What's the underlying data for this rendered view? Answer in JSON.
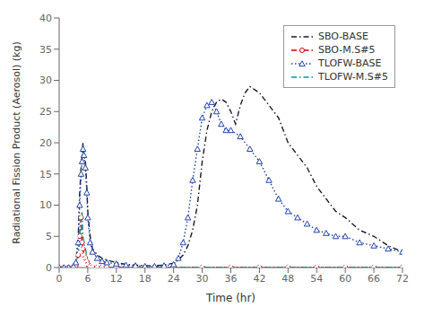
{
  "chart_data": {
    "type": "line",
    "xlabel": "Time (hr)",
    "ylabel": "Radiational Fission Product (Aerosol) (kg)",
    "xlim": [
      0,
      72
    ],
    "ylim": [
      0,
      40
    ],
    "xticks": [
      0,
      6,
      12,
      18,
      24,
      30,
      36,
      42,
      48,
      54,
      60,
      66,
      72
    ],
    "yticks": [
      0,
      5,
      10,
      15,
      20,
      25,
      30,
      35,
      40
    ],
    "grid": false,
    "legend": "upper right",
    "series": [
      {
        "name": "SBO-BASE",
        "color": "#1a1a2e",
        "line_style": "dashdot",
        "marker": "none",
        "x": [
          0,
          1,
          2,
          3,
          3.5,
          4,
          4.3,
          4.6,
          4.8,
          5.0,
          5.2,
          5.5,
          5.8,
          6,
          6.5,
          7,
          8,
          9,
          10,
          12,
          14,
          16,
          18,
          20,
          22,
          24,
          25,
          26,
          27,
          28,
          29,
          30,
          31,
          32,
          33,
          34,
          35,
          36,
          37,
          38,
          39,
          40,
          41,
          42,
          43,
          44,
          45,
          46,
          47,
          48,
          50,
          52,
          54,
          56,
          58,
          60,
          63,
          66,
          69,
          72
        ],
        "values": [
          0,
          0,
          0,
          0.2,
          0.8,
          5,
          12,
          16,
          18,
          20,
          18,
          17,
          13,
          9,
          5,
          3,
          2,
          1.5,
          1.2,
          0.8,
          0.5,
          0.4,
          0.3,
          0.3,
          0.4,
          0.7,
          1.2,
          2.0,
          3.5,
          6,
          10,
          17,
          22,
          25,
          26.5,
          27,
          26.5,
          25,
          23,
          26,
          28,
          29,
          28.5,
          28,
          27,
          26,
          25,
          24,
          22,
          20,
          18,
          16,
          13,
          11,
          9,
          8,
          6,
          5,
          3.5,
          2.5
        ]
      },
      {
        "name": "SBO-M.S#5",
        "color": "#cc0000",
        "line_style": "dashdot",
        "marker": "circle",
        "x": [
          0,
          1,
          2,
          3,
          3.5,
          4,
          4.3,
          4.6,
          4.8,
          5.0,
          5.2,
          5.5,
          5.8,
          6,
          6.5,
          7,
          8,
          9,
          10,
          12,
          14,
          16,
          18,
          20,
          22,
          24,
          30,
          36,
          42,
          48,
          54,
          60,
          66,
          72
        ],
        "values": [
          0,
          0,
          0,
          0.1,
          0.3,
          2,
          5,
          8,
          4,
          3,
          2,
          1.5,
          1.0,
          0.5,
          0.2,
          0.1,
          0.05,
          0.05,
          0.05,
          0.05,
          0.05,
          0.05,
          0.05,
          0.05,
          0.05,
          0.05,
          0.05,
          0.05,
          0.05,
          0.05,
          0.05,
          0.05,
          0.05,
          0.05
        ]
      },
      {
        "name": "TLOFW-BASE",
        "color": "#2244aa",
        "line_style": "dotted",
        "marker": "triangle",
        "x": [
          0,
          1,
          2,
          3,
          3.5,
          4,
          4.3,
          4.6,
          4.8,
          5.0,
          5.2,
          5.5,
          5.8,
          6,
          6.5,
          7,
          8,
          9,
          10,
          12,
          14,
          16,
          18,
          20,
          22,
          24,
          25,
          26,
          27,
          28,
          29,
          30,
          31,
          32,
          33,
          34,
          35,
          36,
          38,
          40,
          42,
          44,
          46,
          48,
          50,
          52,
          54,
          56,
          58,
          60,
          63,
          66,
          69,
          72
        ],
        "values": [
          0,
          0,
          0,
          0.2,
          0.8,
          4,
          10,
          15,
          17,
          19,
          18,
          16,
          12,
          8,
          4,
          2.5,
          1.5,
          1.0,
          0.8,
          0.6,
          0.4,
          0.3,
          0.2,
          0.2,
          0.3,
          0.5,
          1.5,
          4,
          8,
          14,
          19,
          24,
          26,
          26.5,
          25,
          23,
          22,
          22,
          21,
          19,
          17,
          14,
          11,
          9,
          8,
          7,
          6,
          5.5,
          5,
          5,
          4,
          3.5,
          3,
          2.5
        ]
      },
      {
        "name": "TLOFW-M.S#5",
        "color": "#009999",
        "line_style": "dashdot",
        "marker": "none",
        "x": [
          0,
          1,
          2,
          3,
          3.5,
          4,
          4.3,
          4.6,
          4.8,
          5.0,
          5.2,
          5.5,
          5.8,
          6,
          6.5,
          7,
          8,
          9,
          10,
          12,
          14,
          16,
          18,
          20,
          22,
          24,
          30,
          36,
          42,
          48,
          54,
          60,
          66,
          72
        ],
        "values": [
          0,
          0,
          0,
          0.1,
          0.3,
          2,
          5,
          8,
          9,
          5,
          4,
          3,
          2,
          1.0,
          0.5,
          0.2,
          0.1,
          0.05,
          0.05,
          0.05,
          0.05,
          0.05,
          0.05,
          0.05,
          0.05,
          0.05,
          0.05,
          0.05,
          0.05,
          0.05,
          0.05,
          0.05,
          0.05,
          0.05
        ]
      }
    ]
  }
}
